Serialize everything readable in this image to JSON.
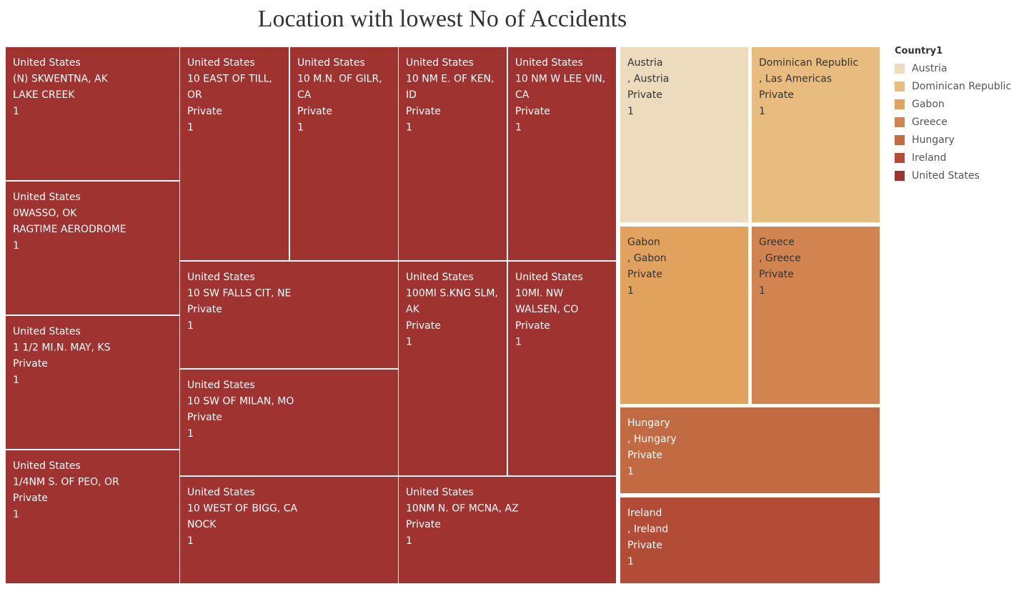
{
  "chart_data": {
    "type": "treemap",
    "title": "Location with lowest No of Accidents",
    "legend": {
      "title": "Country1",
      "position": "right",
      "items": [
        {
          "label": "Austria",
          "color": "#ecdcbd"
        },
        {
          "label": "Dominican Republic",
          "color": "#e7bc7e"
        },
        {
          "label": "Gabon",
          "color": "#e0a25d"
        },
        {
          "label": "Greece",
          "color": "#d18450"
        },
        {
          "label": "Hungary",
          "color": "#c26b42"
        },
        {
          "label": "Ireland",
          "color": "#b24c37"
        },
        {
          "label": "United States",
          "color": "#9e3330"
        }
      ]
    },
    "cells": [
      {
        "country": "United States",
        "lines": [
          "United States",
          "(N) SKWENTNA, AK",
          "LAKE CREEK",
          "1"
        ],
        "value": 1
      },
      {
        "country": "United States",
        "lines": [
          "United States",
          "0WASSO, OK",
          "RAGTIME AERODROME",
          "1"
        ],
        "value": 1
      },
      {
        "country": "United States",
        "lines": [
          "United States",
          "1 1/2 MI.N. MAY, KS",
          "Private",
          "1"
        ],
        "value": 1
      },
      {
        "country": "United States",
        "lines": [
          "United States",
          "1/4NM S. OF PEO, OR",
          "Private",
          "1"
        ],
        "value": 1
      },
      {
        "country": "United States",
        "lines": [
          "United States",
          "10 EAST OF TILL,",
          "OR",
          "Private",
          "1"
        ],
        "value": 1
      },
      {
        "country": "United States",
        "lines": [
          "United States",
          "10 M.N. OF GILR,",
          "CA",
          "Private",
          "1"
        ],
        "value": 1
      },
      {
        "country": "United States",
        "lines": [
          "United States",
          "10 NM E. OF KEN,",
          "ID",
          "Private",
          "1"
        ],
        "value": 1
      },
      {
        "country": "United States",
        "lines": [
          "United States",
          "10 NM W LEE VIN,",
          "CA",
          "Private",
          "1"
        ],
        "value": 1
      },
      {
        "country": "United States",
        "lines": [
          "United States",
          "10 SW FALLS CIT, NE",
          "Private",
          "1"
        ],
        "value": 1
      },
      {
        "country": "United States",
        "lines": [
          "United States",
          "100MI S.KNG SLM,",
          "AK",
          "Private",
          "1"
        ],
        "value": 1
      },
      {
        "country": "United States",
        "lines": [
          "United States",
          "10MI. NW",
          "WALSEN, CO",
          "Private",
          "1"
        ],
        "value": 1
      },
      {
        "country": "United States",
        "lines": [
          "United States",
          "10 SW OF MILAN, MO",
          "Private",
          "1"
        ],
        "value": 1
      },
      {
        "country": "United States",
        "lines": [
          "United States",
          "10 WEST OF BIGG, CA",
          "NOCK",
          "1"
        ],
        "value": 1
      },
      {
        "country": "United States",
        "lines": [
          "United States",
          "10NM N. OF MCNA, AZ",
          "Private",
          "1"
        ],
        "value": 1
      },
      {
        "country": "Austria",
        "lines": [
          "Austria",
          ", Austria",
          "Private",
          "1"
        ],
        "value": 1
      },
      {
        "country": "Dominican Republic",
        "lines": [
          "Dominican Republic",
          ", Las Americas",
          "Private",
          "1"
        ],
        "value": 1
      },
      {
        "country": "Gabon",
        "lines": [
          "Gabon",
          ", Gabon",
          "Private",
          "1"
        ],
        "value": 1
      },
      {
        "country": "Greece",
        "lines": [
          "Greece",
          ", Greece",
          "Private",
          "1"
        ],
        "value": 1
      },
      {
        "country": "Hungary",
        "lines": [
          "Hungary",
          ", Hungary",
          "Private",
          "1"
        ],
        "value": 1
      },
      {
        "country": "Ireland",
        "lines": [
          "Ireland",
          ", Ireland",
          "Private",
          "1"
        ],
        "value": 1
      }
    ]
  }
}
